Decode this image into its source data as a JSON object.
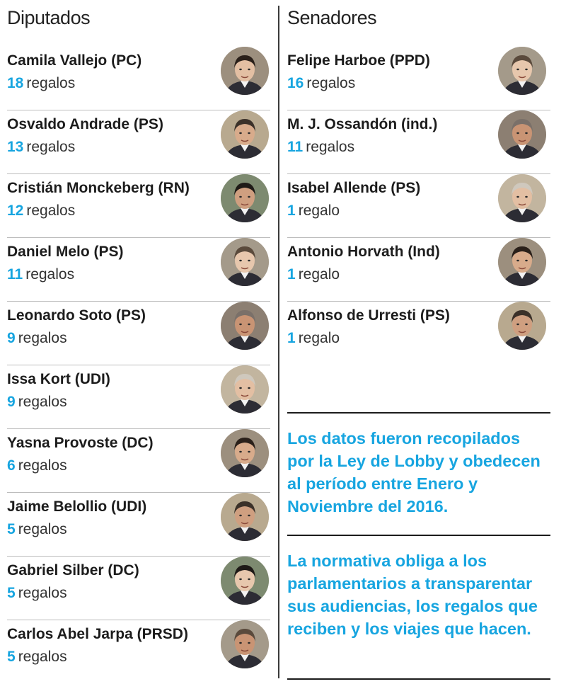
{
  "diputados": {
    "title": "Diputados",
    "items": [
      {
        "name": "Camila Vallejo (PC)",
        "count": "18",
        "unit": "regalos"
      },
      {
        "name": "Osvaldo Andrade (PS)",
        "count": "13",
        "unit": "regalos"
      },
      {
        "name": "Cristián Monckeberg (RN)",
        "count": "12",
        "unit": "regalos"
      },
      {
        "name": "Daniel Melo (PS)",
        "count": "11",
        "unit": "regalos"
      },
      {
        "name": "Leonardo Soto (PS)",
        "count": "9",
        "unit": "regalos"
      },
      {
        "name": "Issa Kort (UDI)",
        "count": "9",
        "unit": "regalos"
      },
      {
        "name": "Yasna Provoste (DC)",
        "count": "6",
        "unit": "regalos"
      },
      {
        "name": "Jaime Belollio (UDI)",
        "count": "5",
        "unit": "regalos"
      },
      {
        "name": "Gabriel Silber (DC)",
        "count": "5",
        "unit": "regalos"
      },
      {
        "name": "Carlos Abel Jarpa (PRSD)",
        "count": "5",
        "unit": "regalos"
      }
    ]
  },
  "senadores": {
    "title": "Senadores",
    "items": [
      {
        "name": "Felipe Harboe (PPD)",
        "count": "16",
        "unit": "regalos"
      },
      {
        "name": "M. J. Ossandón (ind.)",
        "count": "11",
        "unit": "regalos"
      },
      {
        "name": "Isabel Allende (PS)",
        "count": "1",
        "unit": "regalo"
      },
      {
        "name": "Antonio Horvath (Ind)",
        "count": "1",
        "unit": "regalo"
      },
      {
        "name": "Alfonso de Urresti (PS)",
        "count": "1",
        "unit": "regalo"
      }
    ]
  },
  "notes": {
    "first": "Los datos fueron recopilados por la Ley de Lobby y obedecen al período entre Enero y Noviembre del 2016.",
    "second": "La normativa obliga a los parlamentarios a transparentar sus audiencias, los regalos que reciben y los viajes que hacen."
  },
  "colors": {
    "accent": "#17a5e0",
    "text": "#1c1c1c",
    "rule": "#bdbdbd"
  },
  "icons": {
    "avatar": "portrait-photo-icon"
  }
}
